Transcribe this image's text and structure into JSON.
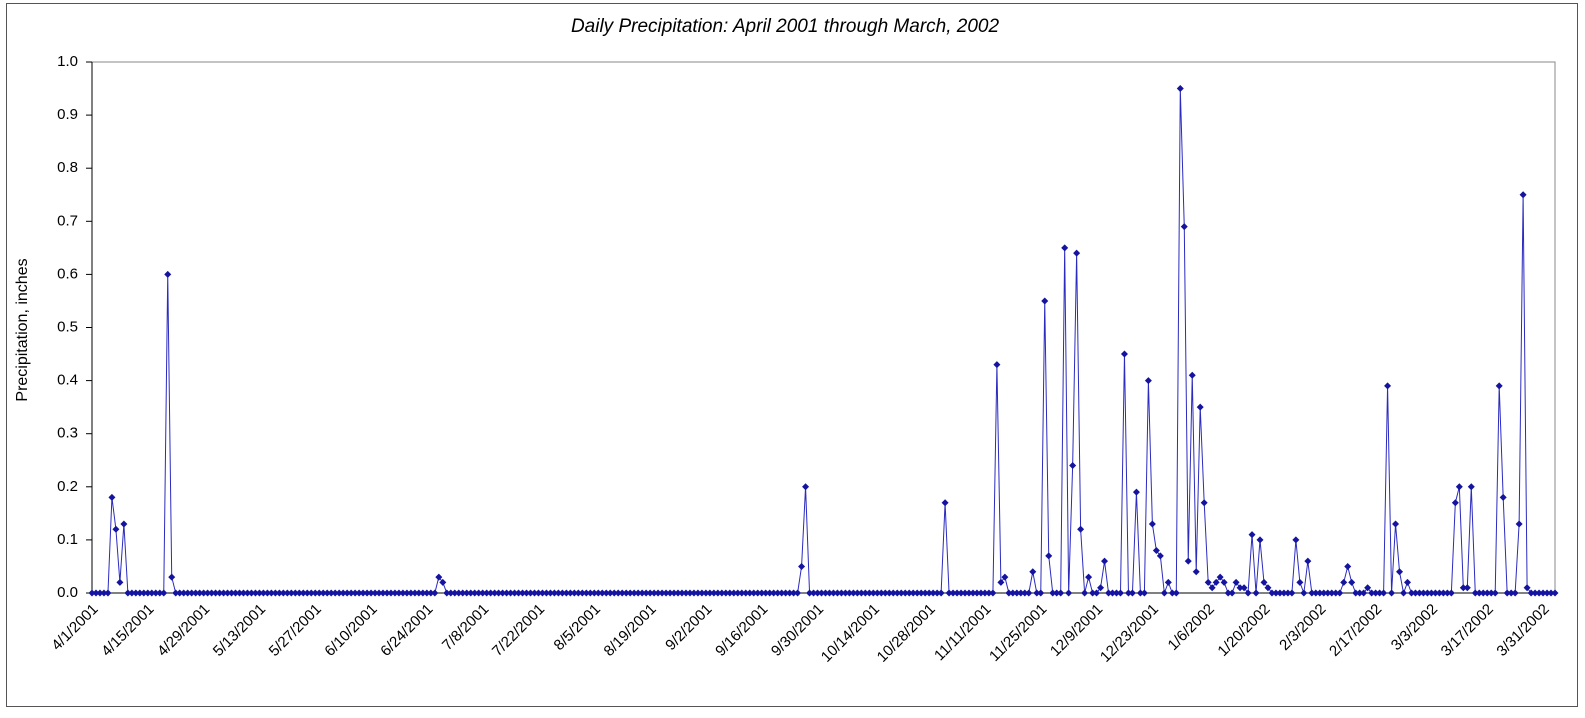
{
  "chart_data": {
    "type": "line",
    "title": "Daily Precipitation: April 2001 through March, 2002",
    "y_label": "Precipitation, inches",
    "color": "#2b2bbf",
    "marker_color": "#1414a0",
    "ylim": [
      0,
      1
    ],
    "yticks": [
      {
        "value": 0,
        "label": "0.0"
      },
      0.1,
      0.2,
      0.3,
      0.4,
      0.5,
      0.6,
      0.7,
      0.8,
      0.9,
      {
        "value": 1,
        "label": "1.0"
      }
    ],
    "grid": false,
    "categories": [
      "4/1/2001",
      null,
      null,
      null,
      null,
      null,
      null,
      null,
      null,
      null,
      null,
      null,
      null,
      null,
      "4/15/2001",
      null,
      null,
      null,
      null,
      null,
      null,
      null,
      null,
      null,
      null,
      null,
      null,
      null,
      "4/29/2001",
      null,
      null,
      null,
      null,
      null,
      null,
      null,
      null,
      null,
      null,
      null,
      null,
      null,
      "5/13/2001",
      null,
      null,
      null,
      null,
      null,
      null,
      null,
      null,
      null,
      null,
      null,
      null,
      null,
      "5/27/2001",
      null,
      null,
      null,
      null,
      null,
      null,
      null,
      null,
      null,
      null,
      null,
      null,
      null,
      "6/10/2001",
      null,
      null,
      null,
      null,
      null,
      null,
      null,
      null,
      null,
      null,
      null,
      null,
      null,
      "6/24/2001",
      null,
      null,
      null,
      null,
      null,
      null,
      null,
      null,
      null,
      null,
      null,
      null,
      null,
      "7/8/2001",
      null,
      null,
      null,
      null,
      null,
      null,
      null,
      null,
      null,
      null,
      null,
      null,
      null,
      "7/22/2001",
      null,
      null,
      null,
      null,
      null,
      null,
      null,
      null,
      null,
      null,
      null,
      null,
      null,
      "8/5/2001",
      null,
      null,
      null,
      null,
      null,
      null,
      null,
      null,
      null,
      null,
      null,
      null,
      null,
      "8/19/2001",
      null,
      null,
      null,
      null,
      null,
      null,
      null,
      null,
      null,
      null,
      null,
      null,
      null,
      "9/2/2001",
      null,
      null,
      null,
      null,
      null,
      null,
      null,
      null,
      null,
      null,
      null,
      null,
      null,
      "9/16/2001",
      null,
      null,
      null,
      null,
      null,
      null,
      null,
      null,
      null,
      null,
      null,
      null,
      null,
      "9/30/2001",
      null,
      null,
      null,
      null,
      null,
      null,
      null,
      null,
      null,
      null,
      null,
      null,
      null,
      "10/14/2001",
      null,
      null,
      null,
      null,
      null,
      null,
      null,
      null,
      null,
      null,
      null,
      null,
      null,
      "10/28/2001",
      null,
      null,
      null,
      null,
      null,
      null,
      null,
      null,
      null,
      null,
      null,
      null,
      null,
      "11/11/2001",
      null,
      null,
      null,
      null,
      null,
      null,
      null,
      null,
      null,
      null,
      null,
      null,
      null,
      "11/25/2001",
      null,
      null,
      null,
      null,
      null,
      null,
      null,
      null,
      null,
      null,
      null,
      null,
      null,
      "12/9/2001",
      null,
      null,
      null,
      null,
      null,
      null,
      null,
      null,
      null,
      null,
      null,
      null,
      null,
      "12/23/2001",
      null,
      null,
      null,
      null,
      null,
      null,
      null,
      null,
      null,
      null,
      null,
      null,
      null,
      "1/6/2002",
      null,
      null,
      null,
      null,
      null,
      null,
      null,
      null,
      null,
      null,
      null,
      null,
      null,
      "1/20/2002",
      null,
      null,
      null,
      null,
      null,
      null,
      null,
      null,
      null,
      null,
      null,
      null,
      null,
      "2/3/2002",
      null,
      null,
      null,
      null,
      null,
      null,
      null,
      null,
      null,
      null,
      null,
      null,
      null,
      "2/17/2002",
      null,
      null,
      null,
      null,
      null,
      null,
      null,
      null,
      null,
      null,
      null,
      null,
      null,
      "3/3/2002",
      null,
      null,
      null,
      null,
      null,
      null,
      null,
      null,
      null,
      null,
      null,
      null,
      null,
      "3/17/2002",
      null,
      null,
      null,
      null,
      null,
      null,
      null,
      null,
      null,
      null,
      null,
      null,
      null,
      "3/31/2002",
      null,
      null,
      null
    ],
    "values": [
      0,
      0,
      0,
      0,
      0,
      0.18,
      0.12,
      0.02,
      0.13,
      0,
      0,
      0,
      0,
      0,
      0,
      0,
      0,
      0,
      0,
      0.6,
      0.03,
      0,
      0,
      0,
      0,
      0,
      0,
      0,
      0,
      0,
      0,
      0,
      0,
      0,
      0,
      0,
      0,
      0,
      0,
      0,
      0,
      0,
      0,
      0,
      0,
      0,
      0,
      0,
      0,
      0,
      0,
      0,
      0,
      0,
      0,
      0,
      0,
      0,
      0,
      0,
      0,
      0,
      0,
      0,
      0,
      0,
      0,
      0,
      0,
      0,
      0,
      0,
      0,
      0,
      0,
      0,
      0,
      0,
      0,
      0,
      0,
      0,
      0,
      0,
      0,
      0,
      0,
      0.03,
      0.02,
      0,
      0,
      0,
      0,
      0,
      0,
      0,
      0,
      0,
      0,
      0,
      0,
      0,
      0,
      0,
      0,
      0,
      0,
      0,
      0,
      0,
      0,
      0,
      0,
      0,
      0,
      0,
      0,
      0,
      0,
      0,
      0,
      0,
      0,
      0,
      0,
      0,
      0,
      0,
      0,
      0,
      0,
      0,
      0,
      0,
      0,
      0,
      0,
      0,
      0,
      0,
      0,
      0,
      0,
      0,
      0,
      0,
      0,
      0,
      0,
      0,
      0,
      0,
      0,
      0,
      0,
      0,
      0,
      0,
      0,
      0,
      0,
      0,
      0,
      0,
      0,
      0,
      0,
      0,
      0,
      0,
      0,
      0,
      0,
      0,
      0,
      0,
      0,
      0,
      0.05,
      0.2,
      0,
      0,
      0,
      0,
      0,
      0,
      0,
      0,
      0,
      0,
      0,
      0,
      0,
      0,
      0,
      0,
      0,
      0,
      0,
      0,
      0,
      0,
      0,
      0,
      0,
      0,
      0,
      0,
      0,
      0,
      0,
      0,
      0,
      0,
      0.17,
      0,
      0,
      0,
      0,
      0,
      0,
      0,
      0,
      0,
      0,
      0,
      0,
      0.43,
      0.02,
      0.03,
      0,
      0,
      0,
      0,
      0,
      0,
      0.04,
      0,
      0,
      0.55,
      0.07,
      0,
      0,
      0,
      0.65,
      0,
      0.24,
      0.64,
      0.12,
      0,
      0.03,
      0,
      0,
      0.01,
      0.06,
      0,
      0,
      0,
      0,
      0.45,
      0,
      0,
      0.19,
      0,
      0,
      0.4,
      0.13,
      0.08,
      0.07,
      0,
      0.02,
      0,
      0,
      0.95,
      0.69,
      0.06,
      0.41,
      0.04,
      0.35,
      0.17,
      0.02,
      0.01,
      0.02,
      0.03,
      0.02,
      0,
      0,
      0.02,
      0.01,
      0.01,
      0,
      0.11,
      0,
      0.1,
      0.02,
      0.01,
      0,
      0,
      0,
      0,
      0,
      0,
      0.1,
      0.02,
      0,
      0.06,
      0,
      0,
      0,
      0,
      0,
      0,
      0,
      0,
      0.02,
      0.05,
      0.02,
      0,
      0,
      0,
      0.01,
      0,
      0,
      0,
      0,
      0.39,
      0,
      0.13,
      0.04,
      0,
      0.02,
      0,
      0,
      0,
      0,
      0,
      0,
      0,
      0,
      0,
      0,
      0,
      0.17,
      0.2,
      0.01,
      0.01,
      0.2,
      0,
      0,
      0,
      0,
      0,
      0,
      0.39,
      0.18,
      0,
      0,
      0,
      0.13,
      0.75,
      0.01,
      0,
      0,
      0,
      0,
      0,
      0,
      0
    ]
  }
}
